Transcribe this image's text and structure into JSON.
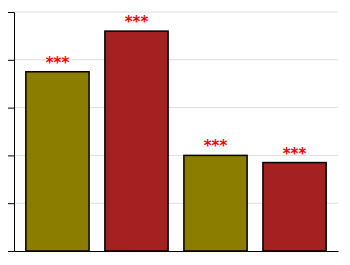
{
  "chart_data": {
    "type": "bar",
    "categories": [
      null,
      null,
      null,
      null
    ],
    "values": [
      75,
      92,
      40,
      37
    ],
    "colors": [
      "#8B7D00",
      "#A52020",
      "#8B7D00",
      "#A52020"
    ],
    "annotations": [
      "***",
      "***",
      "***",
      "***"
    ],
    "ylim": [
      0,
      100
    ],
    "yticks": [
      20,
      40,
      60,
      80,
      100
    ],
    "grid": true,
    "tick_labels": false
  }
}
